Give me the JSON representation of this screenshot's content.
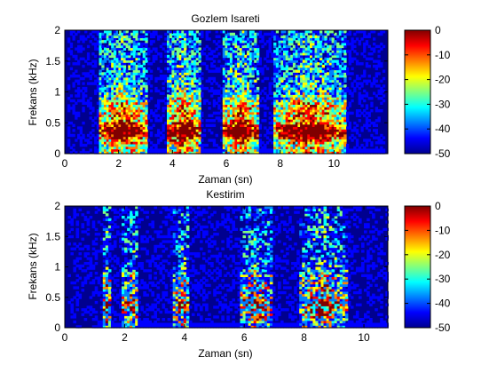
{
  "colormap": [
    "#00008f",
    "#0000ff",
    "#0080ff",
    "#00ffff",
    "#80ff80",
    "#ffff00",
    "#ff8000",
    "#ff0000",
    "#800000"
  ],
  "chart_data": [
    {
      "type": "heatmap",
      "title": "Gozlem Isareti",
      "xlabel": "Zaman (sn)",
      "ylabel": "Frekans (kHz)",
      "xlim": [
        0,
        12
      ],
      "ylim": [
        0,
        2
      ],
      "x_ticks": [
        "0",
        "2",
        "4",
        "6",
        "8",
        "10"
      ],
      "y_ticks": [
        "0",
        "0.5",
        "1",
        "1.5",
        "2"
      ],
      "data_x_range": [
        0.1,
        11.8
      ],
      "clim": [
        -50,
        0
      ],
      "colorbar_ticks": [
        "0",
        "-10",
        "-20",
        "-30",
        "-40",
        "-50"
      ],
      "segments_sec": [
        [
          1.2,
          3.0
        ],
        [
          3.7,
          5.0
        ],
        [
          5.8,
          7.2
        ],
        [
          7.7,
          10.4
        ]
      ]
    },
    {
      "type": "heatmap",
      "title": "Kestirim",
      "xlabel": "Zaman (sn)",
      "ylabel": "Frekans (kHz)",
      "xlim": [
        0,
        10.8
      ],
      "ylim": [
        0,
        2
      ],
      "x_ticks": [
        "0",
        "2",
        "4",
        "6",
        "8",
        "10"
      ],
      "y_ticks": [
        "0",
        "0.5",
        "1",
        "1.5",
        "2"
      ],
      "data_x_range": [
        0.1,
        10.8
      ],
      "clim": [
        -50,
        0
      ],
      "colorbar_ticks": [
        "0",
        "-10",
        "-20",
        "-30",
        "-40",
        "-50"
      ],
      "segments_sec": [
        [
          1.2,
          1.5
        ],
        [
          1.9,
          2.4
        ],
        [
          3.6,
          4.1
        ],
        [
          5.8,
          6.9
        ],
        [
          7.8,
          9.4
        ]
      ]
    }
  ]
}
